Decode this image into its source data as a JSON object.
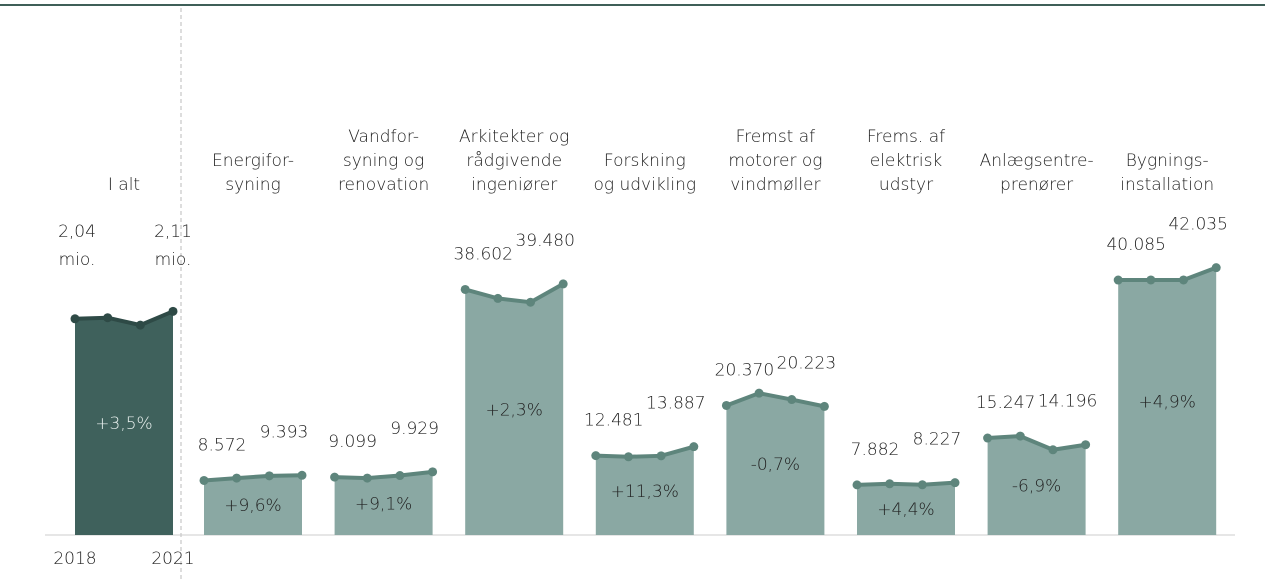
{
  "chart_data": {
    "type": "area",
    "categories": [
      "2018",
      null,
      null,
      "2021"
    ],
    "ylim": [
      0,
      50000
    ],
    "y2lim": [
      0,
      3
    ],
    "total": {
      "name": [
        "I alt"
      ],
      "axis": "y2",
      "values": [
        2.04,
        2.05,
        1.98,
        2.11
      ],
      "value_labels": [
        "2,04 mio.",
        null,
        null,
        "2,11 mio."
      ],
      "change": "+3,5%",
      "fill": "#3f615c",
      "color": "#2e4a46"
    },
    "fill": "#8aa8a3",
    "color": "#5e857c",
    "series": [
      {
        "name": [
          "Energifor-",
          "syning"
        ],
        "values": [
          8572,
          8950,
          9300,
          9393
        ],
        "value_labels": [
          "8.572",
          null,
          null,
          "9.393"
        ],
        "change": "+9,6%"
      },
      {
        "name": [
          "Vandfor-",
          "syning og",
          "renovation"
        ],
        "values": [
          9099,
          8950,
          9350,
          9929
        ],
        "value_labels": [
          "9.099",
          null,
          null,
          "9.929"
        ],
        "change": "+9,1%"
      },
      {
        "name": [
          "Arkitekter og",
          "rådgivende",
          "ingeniører"
        ],
        "values": [
          38602,
          37200,
          36600,
          39480
        ],
        "value_labels": [
          "38.602",
          null,
          null,
          "39.480"
        ],
        "change": "+2,3%"
      },
      {
        "name": [
          "Forskning",
          "og udvikling"
        ],
        "values": [
          12481,
          12300,
          12450,
          13887
        ],
        "value_labels": [
          "12.481",
          null,
          null,
          "13.887"
        ],
        "change": "+11,3%"
      },
      {
        "name": [
          "Fremst af",
          "motorer og",
          "vindmøller"
        ],
        "values": [
          20370,
          22300,
          21300,
          20223
        ],
        "value_labels": [
          "20.370",
          null,
          null,
          "20.223"
        ],
        "change": "-0,7%"
      },
      {
        "name": [
          "Frems. af",
          "elektrisk",
          "udstyr"
        ],
        "values": [
          7882,
          8050,
          7900,
          8227
        ],
        "value_labels": [
          "7.882",
          null,
          null,
          "8.227"
        ],
        "change": "+4,4%"
      },
      {
        "name": [
          "Anlægsentre-",
          "prenører"
        ],
        "values": [
          15247,
          15550,
          13400,
          14196
        ],
        "value_labels": [
          "15.247",
          null,
          null,
          "14.196"
        ],
        "change": "-6,9%"
      },
      {
        "name": [
          "Bygnings-",
          "installation"
        ],
        "values": [
          40085,
          40100,
          40100,
          42035
        ],
        "value_labels": [
          "40.085",
          null,
          null,
          "42.035"
        ],
        "change": "+4,9%"
      }
    ]
  }
}
